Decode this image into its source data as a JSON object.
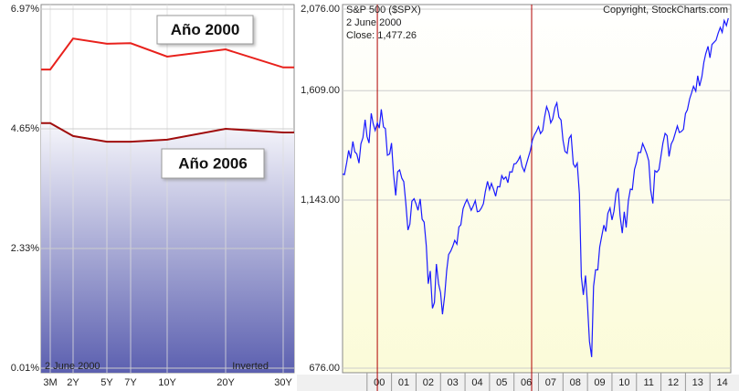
{
  "chart_data": [
    {
      "type": "line",
      "categories": [
        "3M",
        "2Y",
        "5Y",
        "7Y",
        "10Y",
        "20Y",
        "30Y"
      ],
      "series": [
        {
          "name": "Año 2000",
          "color": "#e8211c",
          "values": [
            5.8,
            6.4,
            6.3,
            6.31,
            6.05,
            6.19,
            5.84
          ]
        },
        {
          "name": "Año 2006",
          "color": "#a00d0d",
          "values": [
            4.76,
            4.51,
            4.4,
            4.4,
            4.44,
            4.65,
            4.58
          ]
        }
      ],
      "ylim": [
        0.01,
        6.97
      ],
      "yticks": [
        {
          "value": 6.97,
          "label": "6.97%"
        },
        {
          "value": 4.65,
          "label": "4.65%"
        },
        {
          "value": 2.33,
          "label": "2.33%"
        },
        {
          "value": 0.01,
          "label": "0.01%"
        }
      ],
      "grid": true,
      "annotations": [
        "2  June 2000",
        "Inverted"
      ]
    },
    {
      "type": "line",
      "title": "S&P 500 ($SPX)",
      "source": "Copyright, StockCharts.com",
      "annotations": [
        "2  June 2000",
        "Close: 1,477.26"
      ],
      "log_scale": true,
      "grid": true,
      "color": "#1a1aff",
      "marker_color": "#b00000",
      "markers": [
        2000.42,
        2006.72
      ],
      "xlim": [
        1999,
        2014.85
      ],
      "xticks": [
        {
          "value": 2000,
          "label": "00"
        },
        {
          "value": 2001,
          "label": "01"
        },
        {
          "value": 2002,
          "label": "02"
        },
        {
          "value": 2003,
          "label": "03"
        },
        {
          "value": 2004,
          "label": "04"
        },
        {
          "value": 2005,
          "label": "05"
        },
        {
          "value": 2006,
          "label": "06"
        },
        {
          "value": 2007,
          "label": "07"
        },
        {
          "value": 2008,
          "label": "08"
        },
        {
          "value": 2009,
          "label": "09"
        },
        {
          "value": 2010,
          "label": "10"
        },
        {
          "value": 2011,
          "label": "11"
        },
        {
          "value": 2012,
          "label": "12"
        },
        {
          "value": 2013,
          "label": "13"
        },
        {
          "value": 2014,
          "label": "14"
        }
      ],
      "ylim": [
        676,
        2076
      ],
      "yticks": [
        {
          "value": 2076,
          "label": "2,076.00"
        },
        {
          "value": 1609,
          "label": "1,609.00"
        },
        {
          "value": 1143,
          "label": "1,143.00"
        },
        {
          "value": 676,
          "label": "676.00"
        }
      ],
      "x": [
        1999.0,
        1999.08,
        1999.17,
        1999.25,
        1999.33,
        1999.42,
        1999.5,
        1999.58,
        1999.67,
        1999.75,
        1999.83,
        1999.92,
        2000.0,
        2000.08,
        2000.17,
        2000.25,
        2000.33,
        2000.42,
        2000.5,
        2000.58,
        2000.67,
        2000.75,
        2000.83,
        2000.92,
        2001.0,
        2001.08,
        2001.17,
        2001.25,
        2001.33,
        2001.42,
        2001.5,
        2001.58,
        2001.67,
        2001.75,
        2001.83,
        2001.92,
        2002.0,
        2002.08,
        2002.17,
        2002.25,
        2002.33,
        2002.42,
        2002.5,
        2002.58,
        2002.67,
        2002.75,
        2002.83,
        2002.92,
        2003.0,
        2003.08,
        2003.17,
        2003.25,
        2003.33,
        2003.42,
        2003.5,
        2003.58,
        2003.67,
        2003.75,
        2003.83,
        2003.92,
        2004.0,
        2004.08,
        2004.17,
        2004.25,
        2004.33,
        2004.42,
        2004.5,
        2004.58,
        2004.67,
        2004.75,
        2004.83,
        2004.92,
        2005.0,
        2005.08,
        2005.17,
        2005.25,
        2005.33,
        2005.42,
        2005.5,
        2005.58,
        2005.67,
        2005.75,
        2005.83,
        2005.92,
        2006.0,
        2006.08,
        2006.17,
        2006.25,
        2006.33,
        2006.42,
        2006.5,
        2006.58,
        2006.67,
        2006.75,
        2006.83,
        2006.92,
        2007.0,
        2007.08,
        2007.17,
        2007.25,
        2007.33,
        2007.42,
        2007.5,
        2007.58,
        2007.67,
        2007.75,
        2007.83,
        2007.92,
        2008.0,
        2008.08,
        2008.17,
        2008.25,
        2008.33,
        2008.42,
        2008.5,
        2008.58,
        2008.67,
        2008.75,
        2008.83,
        2008.92,
        2009.0,
        2009.08,
        2009.17,
        2009.25,
        2009.33,
        2009.42,
        2009.5,
        2009.58,
        2009.67,
        2009.75,
        2009.83,
        2009.92,
        2010.0,
        2010.08,
        2010.17,
        2010.25,
        2010.33,
        2010.42,
        2010.5,
        2010.58,
        2010.67,
        2010.75,
        2010.83,
        2010.92,
        2011.0,
        2011.08,
        2011.17,
        2011.25,
        2011.33,
        2011.42,
        2011.5,
        2011.58,
        2011.67,
        2011.75,
        2011.83,
        2011.92,
        2012.0,
        2012.08,
        2012.17,
        2012.25,
        2012.33,
        2012.42,
        2012.5,
        2012.58,
        2012.67,
        2012.75,
        2012.83,
        2012.92,
        2013.0,
        2013.08,
        2013.17,
        2013.25,
        2013.33,
        2013.42,
        2013.5,
        2013.58,
        2013.67,
        2013.75,
        2013.83,
        2013.92,
        2014.0,
        2014.08,
        2014.17,
        2014.25,
        2014.33,
        2014.42,
        2014.5,
        2014.58,
        2014.67,
        2014.75
      ],
      "values": [
        1240,
        1238,
        1286,
        1335,
        1302,
        1373,
        1329,
        1320,
        1283,
        1363,
        1389,
        1469,
        1394,
        1366,
        1499,
        1452,
        1421,
        1455,
        1431,
        1518,
        1437,
        1429,
        1315,
        1320,
        1366,
        1240,
        1160,
        1249,
        1256,
        1224,
        1211,
        1134,
        1041,
        1060,
        1139,
        1148,
        1130,
        1107,
        1147,
        1077,
        1067,
        990,
        880,
        916,
        815,
        830,
        936,
        880,
        856,
        800,
        848,
        917,
        964,
        975,
        990,
        1008,
        996,
        1051,
        1058,
        1112,
        1131,
        1145,
        1126,
        1107,
        1121,
        1141,
        1102,
        1104,
        1115,
        1130,
        1174,
        1212,
        1181,
        1204,
        1181,
        1157,
        1192,
        1191,
        1234,
        1220,
        1229,
        1207,
        1249,
        1248,
        1280,
        1281,
        1295,
        1311,
        1270,
        1250,
        1277,
        1304,
        1336,
        1378,
        1401,
        1418,
        1438,
        1407,
        1421,
        1482,
        1531,
        1503,
        1455,
        1474,
        1527,
        1549,
        1481,
        1468,
        1379,
        1331,
        1323,
        1386,
        1400,
        1280,
        1267,
        1283,
        1165,
        900,
        850,
        903,
        826,
        735,
        700,
        873,
        919,
        919,
        987,
        1021,
        1057,
        1036,
        1096,
        1115,
        1074,
        1104,
        1169,
        1187,
        1089,
        1031,
        1102,
        1049,
        1141,
        1183,
        1181,
        1258,
        1286,
        1327,
        1326,
        1364,
        1345,
        1321,
        1292,
        1180,
        1131,
        1253,
        1247,
        1258,
        1312,
        1366,
        1408,
        1398,
        1310,
        1362,
        1379,
        1407,
        1441,
        1412,
        1416,
        1426,
        1498,
        1515,
        1569,
        1598,
        1631,
        1606,
        1686,
        1633,
        1682,
        1757,
        1806,
        1848,
        1783,
        1859,
        1872,
        1884,
        1924,
        1960,
        1931,
        2003,
        1972,
        2018
      ]
    }
  ]
}
